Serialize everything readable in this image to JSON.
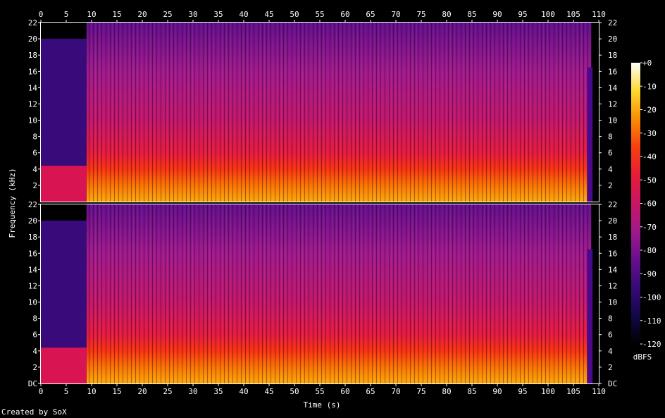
{
  "chart_data": {
    "type": "heatmap",
    "xlabel": "Time (s)",
    "ylabel": "Frequency (kHz)",
    "x_ticks": [
      0,
      5,
      10,
      15,
      20,
      25,
      30,
      35,
      40,
      45,
      50,
      55,
      60,
      65,
      70,
      75,
      80,
      85,
      90,
      95,
      100,
      105,
      110
    ],
    "x_range": [
      0,
      110
    ],
    "channels": [
      {
        "y_ticks": [
          "22",
          "20",
          "18",
          "16",
          "14",
          "12",
          "10",
          "8",
          "6",
          "4",
          "2"
        ],
        "y_range": [
          0,
          22
        ]
      },
      {
        "y_ticks": [
          "22",
          "20",
          "18",
          "16",
          "14",
          "12",
          "10",
          "8",
          "6",
          "4",
          "2",
          "DC"
        ],
        "y_range": [
          0,
          22
        ]
      }
    ],
    "colorbar": {
      "label": "dBFS",
      "range": [
        -120,
        0
      ],
      "ticks": [
        "+0",
        "-10",
        "-20",
        "-30",
        "-40",
        "-50",
        "-60",
        "-70",
        "-80",
        "-90",
        "-100",
        "-110",
        "-120"
      ]
    },
    "intensity_profile": {
      "quiet_intro_end_s": 9,
      "audio_end_s": 108.5,
      "band_levels_khz_dbfs": [
        [
          0,
          -20
        ],
        [
          2,
          -28
        ],
        [
          4,
          -38
        ],
        [
          6,
          -50
        ],
        [
          10,
          -62
        ],
        [
          16,
          -72
        ],
        [
          22,
          -85
        ]
      ]
    }
  },
  "footer": {
    "credit": "Created by SoX"
  }
}
